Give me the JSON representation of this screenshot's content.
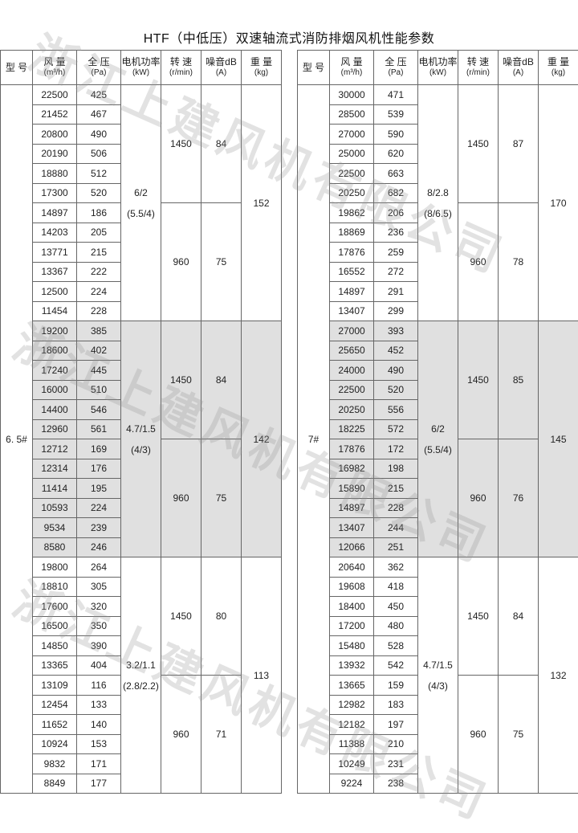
{
  "title": "HTF（中低压）双速轴流式消防排烟风机性能参数",
  "watermark": "浙江上建风机有限公司",
  "colors": {
    "shade": "#e0e0e0",
    "border": "#666666"
  },
  "headers": [
    {
      "main": "型 号",
      "sub": ""
    },
    {
      "main": "风 量",
      "sub": "(m³/h)"
    },
    {
      "main": "全 压",
      "sub": "(Pa)"
    },
    {
      "main": "电机功率",
      "sub": "(kW)"
    },
    {
      "main": "转 速",
      "sub": "(r/min)"
    },
    {
      "main": "噪音dB",
      "sub": "(A)"
    },
    {
      "main": "重 量",
      "sub": "(kg)"
    }
  ],
  "tables": [
    {
      "model": "6. 5#",
      "groups": [
        {
          "power": "6/2",
          "power_sub": "(5.5/4)",
          "weight": "152",
          "shaded": false,
          "speeds": [
            {
              "rpm": "1450",
              "noise": "84",
              "rows": [
                [
                  "22500",
                  "425"
                ],
                [
                  "21452",
                  "467"
                ],
                [
                  "20800",
                  "490"
                ],
                [
                  "20190",
                  "506"
                ],
                [
                  "18880",
                  "512"
                ],
                [
                  "17300",
                  "520"
                ]
              ]
            },
            {
              "rpm": "960",
              "noise": "75",
              "rows": [
                [
                  "14897",
                  "186"
                ],
                [
                  "14203",
                  "205"
                ],
                [
                  "13771",
                  "215"
                ],
                [
                  "13367",
                  "222"
                ],
                [
                  "12500",
                  "224"
                ],
                [
                  "11454",
                  "228"
                ]
              ]
            }
          ]
        },
        {
          "power": "4.7/1.5",
          "power_sub": "(4/3)",
          "weight": "142",
          "shaded": true,
          "speeds": [
            {
              "rpm": "1450",
              "noise": "84",
              "rows": [
                [
                  "19200",
                  "385"
                ],
                [
                  "18600",
                  "402"
                ],
                [
                  "17240",
                  "445"
                ],
                [
                  "16000",
                  "510"
                ],
                [
                  "14400",
                  "546"
                ],
                [
                  "12960",
                  "561"
                ]
              ]
            },
            {
              "rpm": "960",
              "noise": "75",
              "rows": [
                [
                  "12712",
                  "169"
                ],
                [
                  "12314",
                  "176"
                ],
                [
                  "11414",
                  "195"
                ],
                [
                  "10593",
                  "224"
                ],
                [
                  "9534",
                  "239"
                ],
                [
                  "8580",
                  "246"
                ]
              ]
            }
          ]
        },
        {
          "power": "3.2/1.1",
          "power_sub": "(2.8/2.2)",
          "weight": "113",
          "shaded": false,
          "speeds": [
            {
              "rpm": "1450",
              "noise": "80",
              "rows": [
                [
                  "19800",
                  "264"
                ],
                [
                  "18810",
                  "305"
                ],
                [
                  "17600",
                  "320"
                ],
                [
                  "16500",
                  "350"
                ],
                [
                  "14850",
                  "390"
                ],
                [
                  "13365",
                  "404"
                ]
              ]
            },
            {
              "rpm": "960",
              "noise": "71",
              "rows": [
                [
                  "13109",
                  "116"
                ],
                [
                  "12454",
                  "133"
                ],
                [
                  "11652",
                  "140"
                ],
                [
                  "10924",
                  "153"
                ],
                [
                  "9832",
                  "171"
                ],
                [
                  "8849",
                  "177"
                ]
              ]
            }
          ]
        }
      ]
    },
    {
      "model": "7#",
      "groups": [
        {
          "power": "8/2.8",
          "power_sub": "(8/6.5)",
          "weight": "170",
          "shaded": false,
          "speeds": [
            {
              "rpm": "1450",
              "noise": "87",
              "rows": [
                [
                  "30000",
                  "471"
                ],
                [
                  "28500",
                  "539"
                ],
                [
                  "27000",
                  "590"
                ],
                [
                  "25000",
                  "620"
                ],
                [
                  "22500",
                  "663"
                ],
                [
                  "20250",
                  "682"
                ]
              ]
            },
            {
              "rpm": "960",
              "noise": "78",
              "rows": [
                [
                  "19862",
                  "206"
                ],
                [
                  "18869",
                  "236"
                ],
                [
                  "17876",
                  "259"
                ],
                [
                  "16552",
                  "272"
                ],
                [
                  "14897",
                  "291"
                ],
                [
                  "13407",
                  "299"
                ]
              ]
            }
          ]
        },
        {
          "power": "6/2",
          "power_sub": "(5.5/4)",
          "weight": "145",
          "shaded": true,
          "speeds": [
            {
              "rpm": "1450",
              "noise": "85",
              "rows": [
                [
                  "27000",
                  "393"
                ],
                [
                  "25650",
                  "452"
                ],
                [
                  "24000",
                  "490"
                ],
                [
                  "22500",
                  "520"
                ],
                [
                  "20250",
                  "556"
                ],
                [
                  "18225",
                  "572"
                ]
              ]
            },
            {
              "rpm": "960",
              "noise": "76",
              "rows": [
                [
                  "17876",
                  "172"
                ],
                [
                  "16982",
                  "198"
                ],
                [
                  "15890",
                  "215"
                ],
                [
                  "14897",
                  "228"
                ],
                [
                  "13407",
                  "244"
                ],
                [
                  "12066",
                  "251"
                ]
              ]
            }
          ]
        },
        {
          "power": "4.7/1.5",
          "power_sub": "(4/3)",
          "weight": "132",
          "shaded": false,
          "speeds": [
            {
              "rpm": "1450",
              "noise": "84",
              "rows": [
                [
                  "20640",
                  "362"
                ],
                [
                  "19608",
                  "418"
                ],
                [
                  "18400",
                  "450"
                ],
                [
                  "17200",
                  "480"
                ],
                [
                  "15480",
                  "528"
                ],
                [
                  "13932",
                  "542"
                ]
              ]
            },
            {
              "rpm": "960",
              "noise": "75",
              "rows": [
                [
                  "13665",
                  "159"
                ],
                [
                  "12982",
                  "183"
                ],
                [
                  "12182",
                  "197"
                ],
                [
                  "11388",
                  "210"
                ],
                [
                  "10249",
                  "231"
                ],
                [
                  "9224",
                  "238"
                ]
              ]
            }
          ]
        }
      ]
    }
  ]
}
